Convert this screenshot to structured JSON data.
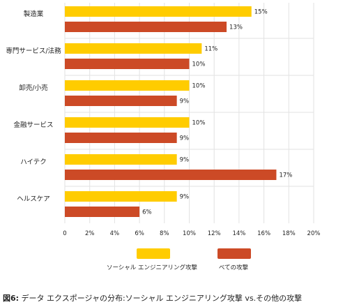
{
  "chart_data": {
    "type": "bar",
    "orientation": "horizontal",
    "categories": [
      "製造業",
      "専門サービス/法務",
      "卸売/小売",
      "金融サービス",
      "ハイテク",
      "ヘルスケア"
    ],
    "series": [
      {
        "name": "ソーシャル エンジニアリング攻撃",
        "color": "#FFCC00",
        "values": [
          15,
          11,
          10,
          10,
          9,
          9
        ]
      },
      {
        "name": "べての攻撃",
        "color": "#CC4A26",
        "values": [
          13,
          10,
          9,
          9,
          17,
          6
        ]
      }
    ],
    "value_labels": [
      [
        "15%",
        "11%",
        "10%",
        "10%",
        "9%",
        "9%"
      ],
      [
        "13%",
        "10%",
        "9%",
        "9%",
        "17%",
        "6%"
      ]
    ],
    "xlim": [
      0,
      20
    ],
    "xticks": [
      "0",
      "2%",
      "4%",
      "6%",
      "8%",
      "10%",
      "12%",
      "14%",
      "16%",
      "18%",
      "20%"
    ],
    "grid": "vertical",
    "legend_position": "bottom"
  },
  "caption": {
    "figure_label": "図6:",
    "text": " データ エクスポージャの分布:ソーシャル エンジニアリング攻撃 vs.その他の攻撃"
  }
}
